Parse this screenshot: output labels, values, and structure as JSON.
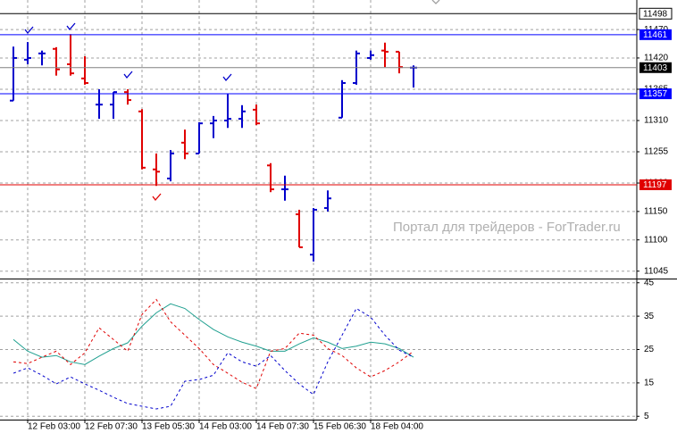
{
  "chart_data": [
    {
      "type": "ohlc",
      "categories": [
        null,
        "12 Feb 03:00",
        null,
        null,
        null,
        "12 Feb 07:30",
        null,
        null,
        null,
        "13 Feb 05:30",
        null,
        null,
        null,
        "14 Feb 03:00",
        null,
        null,
        null,
        "14 Feb 07:30",
        null,
        null,
        null,
        "15 Feb 06:30",
        null,
        null,
        null,
        "18 Feb 04:00",
        null,
        null,
        null
      ],
      "open": [
        11345,
        11417,
        11428,
        11436,
        11409,
        11384,
        11338,
        11338,
        11360,
        11326,
        11224,
        11208,
        11271,
        11252,
        11305,
        11310,
        11313,
        11329,
        11231,
        11189,
        11145,
        11074,
        11156,
        11315,
        11376,
        11420,
        11433,
        11431,
        11403
      ],
      "high": [
        11440,
        11448,
        11433,
        11439,
        11462,
        11423,
        11365,
        11360,
        11365,
        11330,
        11252,
        11258,
        11294,
        11307,
        11318,
        11357,
        11337,
        11338,
        11235,
        11213,
        11153,
        11156,
        11187,
        11381,
        11433,
        11433,
        11447,
        11431,
        11407
      ],
      "low": [
        11345,
        11409,
        11407,
        11389,
        11389,
        11373,
        11313,
        11313,
        11338,
        11224,
        11195,
        11203,
        11242,
        11252,
        11279,
        11297,
        11297,
        11302,
        11184,
        11169,
        11087,
        11062,
        11150,
        11315,
        11373,
        11417,
        11404,
        11393,
        11368
      ],
      "close": [
        11420,
        11420,
        11428,
        11400,
        11393,
        11376,
        11338,
        11360,
        11346,
        11227,
        11220,
        11252,
        11252,
        11305,
        11310,
        11313,
        11326,
        11305,
        11189,
        11189,
        11087,
        11153,
        11173,
        11376,
        11428,
        11425,
        11431,
        11404,
        11403
      ],
      "up_color": "#0000cc",
      "down_color": "#e00000",
      "ylim": [
        11032,
        11522
      ],
      "yticks": [
        11470,
        11420,
        11365,
        11310,
        11255,
        11200,
        11150,
        11100,
        11045
      ],
      "price_lines": [
        {
          "value": 11498,
          "color": "#000000"
        },
        {
          "value": 11461,
          "color": "#0000ff"
        },
        {
          "value": 11403,
          "color": "#808080"
        },
        {
          "value": 11357,
          "color": "#0000ff"
        },
        {
          "value": 11197,
          "color": "#e00000"
        }
      ],
      "annotation": "Портал для трейдеров - ForTrader.ru",
      "grid": true
    },
    {
      "type": "line",
      "series": [
        {
          "color": "#20a090",
          "dash": false,
          "values": [
            28,
            24.5,
            22.7,
            23.2,
            21.3,
            20.5,
            23,
            25.3,
            27,
            32,
            36,
            38.7,
            37.3,
            34,
            31,
            28.8,
            27.2,
            26,
            24.5,
            24.5,
            26.7,
            28.5,
            27.2,
            25.3,
            26,
            27.2,
            26.7,
            25.3,
            22.7
          ]
        },
        {
          "color": "#e00000",
          "dash": true,
          "values": [
            21.3,
            20.8,
            22.7,
            24.5,
            20.5,
            24,
            31.5,
            28,
            24.5,
            35.5,
            40,
            33.3,
            29.3,
            25.3,
            20.5,
            17.9,
            15.2,
            13.3,
            24.5,
            25.3,
            29.9,
            29.3,
            25.3,
            23.2,
            19.5,
            16.8,
            18.7,
            21.3,
            24.5
          ]
        },
        {
          "color": "#0000cc",
          "dash": true,
          "values": [
            17.9,
            19.5,
            17.3,
            14.7,
            16.8,
            14.7,
            12.8,
            10.7,
            8.8,
            8,
            7.2,
            8,
            15.5,
            16,
            17.3,
            24,
            21.3,
            20,
            23.2,
            18.7,
            14.7,
            11.5,
            21.3,
            29.3,
            37.3,
            34.7,
            29.3,
            24.8,
            22.7
          ]
        }
      ],
      "ylim": [
        4,
        46
      ],
      "yticks": [
        45,
        35,
        25,
        15,
        5
      ],
      "grid": true
    }
  ]
}
